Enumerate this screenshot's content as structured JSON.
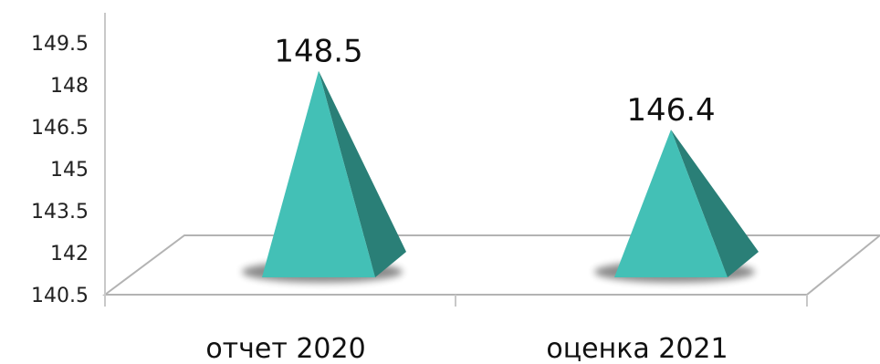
{
  "chart_data": {
    "type": "bar",
    "bar_shape": "pyramid",
    "categories": [
      "отчет 2020",
      "оценка 2021"
    ],
    "values": [
      148.5,
      146.4
    ],
    "data_labels": [
      "148.5",
      "146.4"
    ],
    "yticks": [
      "149.5",
      "148",
      "146.5",
      "145",
      "143.5",
      "142",
      "140.5"
    ],
    "ylim": [
      140.5,
      149.5
    ],
    "title": "",
    "xlabel": "",
    "ylabel": "",
    "grid": false,
    "legend": "none",
    "colors": {
      "front_face": "#43c0b6",
      "side_face": "#2a7f77",
      "floor_line": "#b3b3b3",
      "axis_line": "#c8c8c8"
    }
  }
}
